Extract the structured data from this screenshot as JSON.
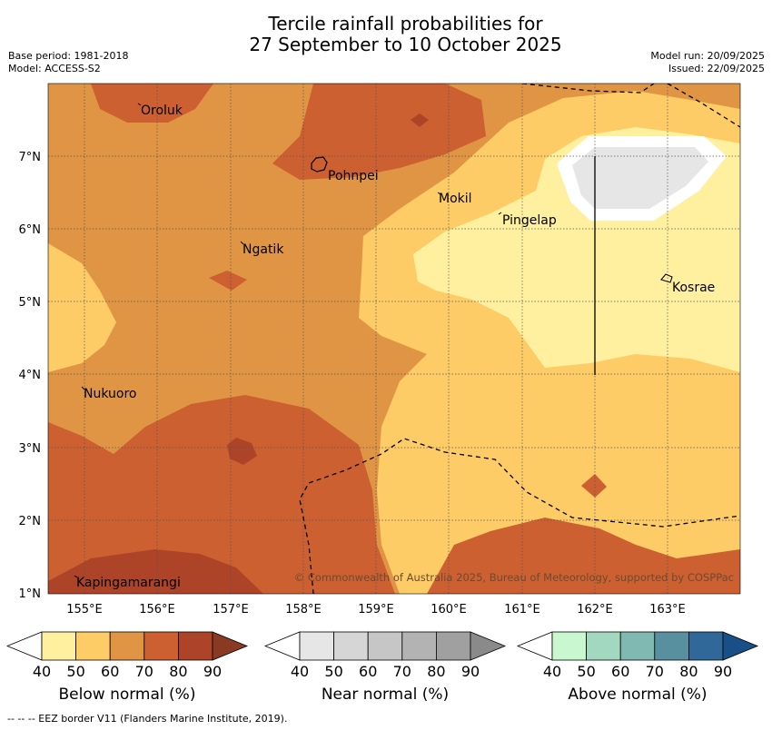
{
  "title_line1": "Tercile rainfall probabilities for",
  "title_line2": "27 September to 10 October 2025",
  "meta_left": {
    "base_period": "Base period: 1981-2018",
    "model": "Model: ACCESS-S2"
  },
  "meta_right": {
    "model_run": "Model run: 20/09/2025",
    "issued": "Issued: 22/09/2025"
  },
  "map": {
    "lat_labels": [
      "7°N",
      "6°N",
      "5°N",
      "4°N",
      "3°N",
      "2°N",
      "1°N"
    ],
    "lon_labels": [
      "155°E",
      "156°E",
      "157°E",
      "158°E",
      "159°E",
      "160°E",
      "161°E",
      "162°E",
      "163°E"
    ],
    "places": [
      {
        "name": "Oroluk"
      },
      {
        "name": "Pohnpei"
      },
      {
        "name": "Mokil"
      },
      {
        "name": "Pingelap"
      },
      {
        "name": "Ngatik"
      },
      {
        "name": "Kosrae"
      },
      {
        "name": "Nukuoro"
      },
      {
        "name": "Kapingamarangi"
      }
    ],
    "copyright": "© Commonwealth of Australia 2025, Bureau of Meteorology, supported by COSPPac"
  },
  "colorbars": [
    {
      "title": "Below normal (%)",
      "ticks": [
        "40",
        "50",
        "60",
        "70",
        "80",
        "90"
      ],
      "colors": [
        "#fff0a0",
        "#fdcc66",
        "#e09545",
        "#cc6030",
        "#ad4428",
        "#8a3a22"
      ]
    },
    {
      "title": "Near normal (%)",
      "ticks": [
        "40",
        "50",
        "60",
        "70",
        "80",
        "90"
      ],
      "colors": [
        "#e6e6e6",
        "#d6d6d6",
        "#c6c6c6",
        "#b3b3b3",
        "#a0a0a0",
        "#8a8a8a"
      ]
    },
    {
      "title": "Above normal (%)",
      "ticks": [
        "40",
        "50",
        "60",
        "70",
        "80",
        "90"
      ],
      "colors": [
        "#c8f7d0",
        "#a3d8c0",
        "#80b8b2",
        "#5990a0",
        "#30689a",
        "#184f88"
      ]
    }
  ],
  "footer": "--  --  -- EEZ border V11 (Flanders Marine Institute, 2019)."
}
